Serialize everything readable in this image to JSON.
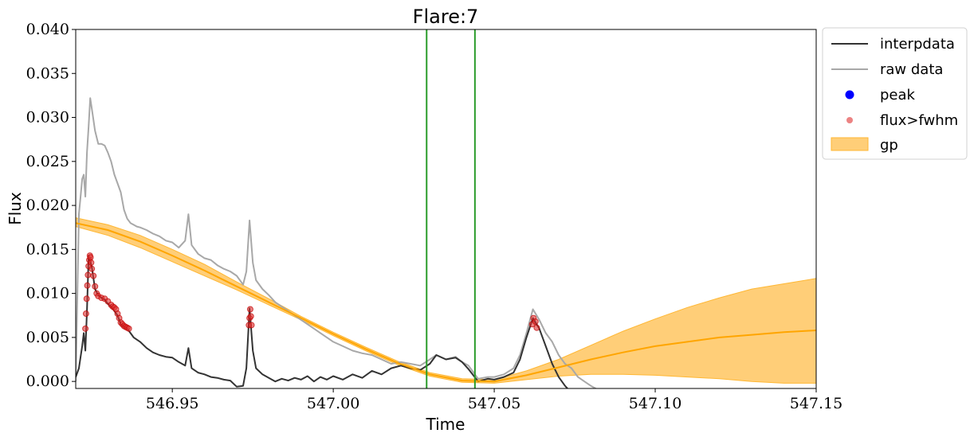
{
  "chart_data": {
    "type": "line",
    "title": "Flare:7",
    "xlabel": "Time",
    "ylabel": "Flux",
    "xlim": [
      546.92,
      547.15
    ],
    "ylim": [
      -0.0008,
      0.04
    ],
    "xticks": [
      546.95,
      547.0,
      547.05,
      547.1,
      547.15
    ],
    "xtick_labels": [
      "546.95",
      "547.00",
      "547.05",
      "547.10",
      "547.15"
    ],
    "yticks": [
      0.0,
      0.005,
      0.01,
      0.015,
      0.02,
      0.025,
      0.03,
      0.035,
      0.04
    ],
    "ytick_labels": [
      "0.000",
      "0.005",
      "0.010",
      "0.015",
      "0.020",
      "0.025",
      "0.030",
      "0.035",
      "0.040"
    ],
    "grid": false,
    "legend_position": "outside-top-right",
    "vlines": [
      547.029,
      547.044
    ],
    "colors": {
      "interpdata": "#333333",
      "raw": "#a8a8a8",
      "peak": "#0000ff",
      "fwhm": "#e03030",
      "gp_band": "#ffc660",
      "gp_mean": "#ffa500",
      "vline": "#2a9c2a"
    },
    "series": [
      {
        "name": "raw data",
        "style": "line",
        "points": [
          [
            546.92,
            0.0
          ],
          [
            546.921,
            0.019
          ],
          [
            546.9215,
            0.021
          ],
          [
            546.922,
            0.023
          ],
          [
            546.9225,
            0.0235
          ],
          [
            546.923,
            0.021
          ],
          [
            546.9235,
            0.026
          ],
          [
            546.924,
            0.029
          ],
          [
            546.9245,
            0.0322
          ],
          [
            546.925,
            0.031
          ],
          [
            546.926,
            0.0285
          ],
          [
            546.927,
            0.027
          ],
          [
            546.928,
            0.027
          ],
          [
            546.929,
            0.0268
          ],
          [
            546.93,
            0.026
          ],
          [
            546.931,
            0.025
          ],
          [
            546.932,
            0.0235
          ],
          [
            546.933,
            0.0225
          ],
          [
            546.934,
            0.0215
          ],
          [
            546.935,
            0.0195
          ],
          [
            546.936,
            0.0185
          ],
          [
            546.937,
            0.018
          ],
          [
            546.938,
            0.0178
          ],
          [
            546.939,
            0.0176
          ],
          [
            546.94,
            0.0175
          ],
          [
            546.942,
            0.0172
          ],
          [
            546.944,
            0.0168
          ],
          [
            546.946,
            0.0165
          ],
          [
            546.948,
            0.016
          ],
          [
            546.95,
            0.0158
          ],
          [
            546.952,
            0.0152
          ],
          [
            546.954,
            0.016
          ],
          [
            546.955,
            0.019
          ],
          [
            546.956,
            0.0155
          ],
          [
            546.958,
            0.0145
          ],
          [
            546.96,
            0.014
          ],
          [
            546.962,
            0.0138
          ],
          [
            546.964,
            0.0132
          ],
          [
            546.966,
            0.0128
          ],
          [
            546.968,
            0.0125
          ],
          [
            546.97,
            0.012
          ],
          [
            546.972,
            0.011
          ],
          [
            546.973,
            0.0125
          ],
          [
            546.974,
            0.0183
          ],
          [
            546.975,
            0.0135
          ],
          [
            546.976,
            0.0115
          ],
          [
            546.978,
            0.0105
          ],
          [
            546.98,
            0.0098
          ],
          [
            546.982,
            0.009
          ],
          [
            546.984,
            0.0085
          ],
          [
            546.986,
            0.008
          ],
          [
            546.988,
            0.0075
          ],
          [
            546.99,
            0.007
          ],
          [
            546.992,
            0.0065
          ],
          [
            546.994,
            0.006
          ],
          [
            546.996,
            0.0055
          ],
          [
            546.998,
            0.005
          ],
          [
            547.0,
            0.0045
          ],
          [
            547.003,
            0.004
          ],
          [
            547.006,
            0.0035
          ],
          [
            547.009,
            0.0032
          ],
          [
            547.012,
            0.003
          ],
          [
            547.015,
            0.0025
          ],
          [
            547.018,
            0.002
          ],
          [
            547.021,
            0.0022
          ],
          [
            547.024,
            0.002
          ],
          [
            547.027,
            0.0018
          ],
          [
            547.03,
            0.0025
          ],
          [
            547.032,
            0.003
          ],
          [
            547.035,
            0.0025
          ],
          [
            547.038,
            0.0028
          ],
          [
            547.04,
            0.0022
          ],
          [
            547.042,
            0.0018
          ],
          [
            547.045,
            0.0003
          ],
          [
            547.048,
            0.0005
          ],
          [
            547.05,
            0.0005
          ],
          [
            547.053,
            0.0008
          ],
          [
            547.056,
            0.0015
          ],
          [
            547.058,
            0.003
          ],
          [
            547.06,
            0.0055
          ],
          [
            547.062,
            0.0082
          ],
          [
            547.064,
            0.007
          ],
          [
            547.066,
            0.0055
          ],
          [
            547.068,
            0.0045
          ],
          [
            547.07,
            0.003
          ],
          [
            547.072,
            0.002
          ],
          [
            547.074,
            0.0015
          ],
          [
            547.076,
            0.0005
          ],
          [
            547.078,
            0.0
          ],
          [
            547.08,
            -0.0005
          ],
          [
            547.082,
            -0.0009
          ]
        ]
      },
      {
        "name": "interpdata",
        "style": "line",
        "points": [
          [
            546.92,
            0.0005
          ],
          [
            546.921,
            0.0015
          ],
          [
            546.922,
            0.004
          ],
          [
            546.9225,
            0.0055
          ],
          [
            546.923,
            0.0035
          ],
          [
            546.9235,
            0.008
          ],
          [
            546.924,
            0.0143
          ],
          [
            546.925,
            0.013
          ],
          [
            546.926,
            0.0105
          ],
          [
            546.927,
            0.0098
          ],
          [
            546.928,
            0.0095
          ],
          [
            546.929,
            0.0093
          ],
          [
            546.93,
            0.0088
          ],
          [
            546.931,
            0.0085
          ],
          [
            546.932,
            0.008
          ],
          [
            546.933,
            0.0075
          ],
          [
            546.934,
            0.0065
          ],
          [
            546.935,
            0.0062
          ],
          [
            546.936,
            0.006
          ],
          [
            546.937,
            0.0055
          ],
          [
            546.938,
            0.005
          ],
          [
            546.94,
            0.0045
          ],
          [
            546.942,
            0.0038
          ],
          [
            546.944,
            0.0033
          ],
          [
            546.946,
            0.003
          ],
          [
            546.948,
            0.0028
          ],
          [
            546.95,
            0.0027
          ],
          [
            546.952,
            0.0022
          ],
          [
            546.954,
            0.0018
          ],
          [
            546.955,
            0.0038
          ],
          [
            546.956,
            0.0015
          ],
          [
            546.958,
            0.001
          ],
          [
            546.96,
            0.0008
          ],
          [
            546.962,
            0.0005
          ],
          [
            546.964,
            0.0004
          ],
          [
            546.966,
            0.0002
          ],
          [
            546.968,
            0.0001
          ],
          [
            546.97,
            -0.0006
          ],
          [
            546.972,
            -0.0005
          ],
          [
            546.973,
            0.0015
          ],
          [
            546.974,
            0.0083
          ],
          [
            546.975,
            0.0035
          ],
          [
            546.976,
            0.0015
          ],
          [
            546.978,
            0.0008
          ],
          [
            546.98,
            0.0004
          ],
          [
            546.982,
            0.0
          ],
          [
            546.984,
            0.0003
          ],
          [
            546.986,
            0.0001
          ],
          [
            546.988,
            0.0004
          ],
          [
            546.99,
            0.0002
          ],
          [
            546.992,
            0.0006
          ],
          [
            546.994,
            0.0
          ],
          [
            546.996,
            0.0005
          ],
          [
            546.998,
            0.0002
          ],
          [
            547.0,
            0.0006
          ],
          [
            547.003,
            0.0002
          ],
          [
            547.006,
            0.0008
          ],
          [
            547.009,
            0.0004
          ],
          [
            547.012,
            0.0012
          ],
          [
            547.015,
            0.0008
          ],
          [
            547.018,
            0.0015
          ],
          [
            547.021,
            0.0018
          ],
          [
            547.024,
            0.0015
          ],
          [
            547.027,
            0.0013
          ],
          [
            547.03,
            0.002
          ],
          [
            547.032,
            0.003
          ],
          [
            547.035,
            0.0025
          ],
          [
            547.038,
            0.0027
          ],
          [
            547.04,
            0.0022
          ],
          [
            547.042,
            0.0014
          ],
          [
            547.045,
            0.0
          ],
          [
            547.048,
            0.0003
          ],
          [
            547.05,
            0.0002
          ],
          [
            547.053,
            0.0005
          ],
          [
            547.056,
            0.001
          ],
          [
            547.058,
            0.0025
          ],
          [
            547.06,
            0.005
          ],
          [
            547.062,
            0.0072
          ],
          [
            547.064,
            0.006
          ],
          [
            547.066,
            0.004
          ],
          [
            547.068,
            0.002
          ],
          [
            547.07,
            0.0005
          ],
          [
            547.072,
            -0.0005
          ],
          [
            547.073,
            -0.0009
          ]
        ]
      },
      {
        "name": "flux>fwhm",
        "style": "scatter",
        "points": [
          [
            546.923,
            0.006
          ],
          [
            546.9232,
            0.0077
          ],
          [
            546.9234,
            0.0094
          ],
          [
            546.9236,
            0.0109
          ],
          [
            546.9238,
            0.0121
          ],
          [
            546.924,
            0.0131
          ],
          [
            546.9242,
            0.0138
          ],
          [
            546.9244,
            0.0143
          ],
          [
            546.9246,
            0.0141
          ],
          [
            546.9248,
            0.0135
          ],
          [
            546.925,
            0.0128
          ],
          [
            546.9255,
            0.012
          ],
          [
            546.926,
            0.0108
          ],
          [
            546.9265,
            0.01
          ],
          [
            546.927,
            0.0097
          ],
          [
            546.928,
            0.0095
          ],
          [
            546.929,
            0.0094
          ],
          [
            546.93,
            0.0091
          ],
          [
            546.931,
            0.0087
          ],
          [
            546.9315,
            0.0085
          ],
          [
            546.932,
            0.0084
          ],
          [
            546.9325,
            0.0082
          ],
          [
            546.933,
            0.0077
          ],
          [
            546.9335,
            0.0072
          ],
          [
            546.934,
            0.0067
          ],
          [
            546.9345,
            0.0065
          ],
          [
            546.935,
            0.0063
          ],
          [
            546.9355,
            0.0062
          ],
          [
            546.936,
            0.0061
          ],
          [
            546.9365,
            0.006
          ],
          [
            546.9738,
            0.0064
          ],
          [
            546.974,
            0.0072
          ],
          [
            546.9742,
            0.0082
          ],
          [
            546.9744,
            0.0074
          ],
          [
            546.9746,
            0.0064
          ],
          [
            547.0618,
            0.0065
          ],
          [
            547.0622,
            0.0072
          ],
          [
            547.0628,
            0.0068
          ],
          [
            547.0632,
            0.0061
          ]
        ]
      },
      {
        "name": "gp",
        "style": "band",
        "x": [
          546.92,
          546.93,
          546.94,
          546.95,
          546.96,
          546.97,
          546.98,
          546.99,
          547.0,
          547.01,
          547.02,
          547.03,
          547.04,
          547.05,
          547.06,
          547.07,
          547.08,
          547.09,
          547.1,
          547.11,
          547.12,
          547.13,
          547.14,
          547.15
        ],
        "mean": [
          0.018,
          0.0172,
          0.0159,
          0.0143,
          0.0126,
          0.0108,
          0.009,
          0.0072,
          0.0054,
          0.0037,
          0.0021,
          0.0008,
          0.0001,
          0.0,
          0.0007,
          0.0016,
          0.0025,
          0.0033,
          0.004,
          0.0045,
          0.005,
          0.0053,
          0.0056,
          0.0058
        ],
        "lower": [
          0.0176,
          0.0166,
          0.0152,
          0.0136,
          0.012,
          0.0104,
          0.0087,
          0.007,
          0.0052,
          0.0035,
          0.0019,
          0.0006,
          -0.0001,
          -0.0002,
          0.0002,
          0.0006,
          0.0008,
          0.0008,
          0.0007,
          0.0005,
          0.0003,
          0.0,
          -0.0002,
          -0.0002
        ],
        "upper": [
          0.0186,
          0.0178,
          0.0166,
          0.015,
          0.0133,
          0.0113,
          0.0094,
          0.0074,
          0.0056,
          0.0039,
          0.0023,
          0.001,
          0.0003,
          0.0002,
          0.0012,
          0.0025,
          0.0041,
          0.0057,
          0.0071,
          0.0084,
          0.0095,
          0.0105,
          0.0111,
          0.0117
        ]
      }
    ],
    "legend": [
      "interpdata",
      "raw data",
      "peak",
      "flux>fwhm",
      "gp"
    ]
  }
}
